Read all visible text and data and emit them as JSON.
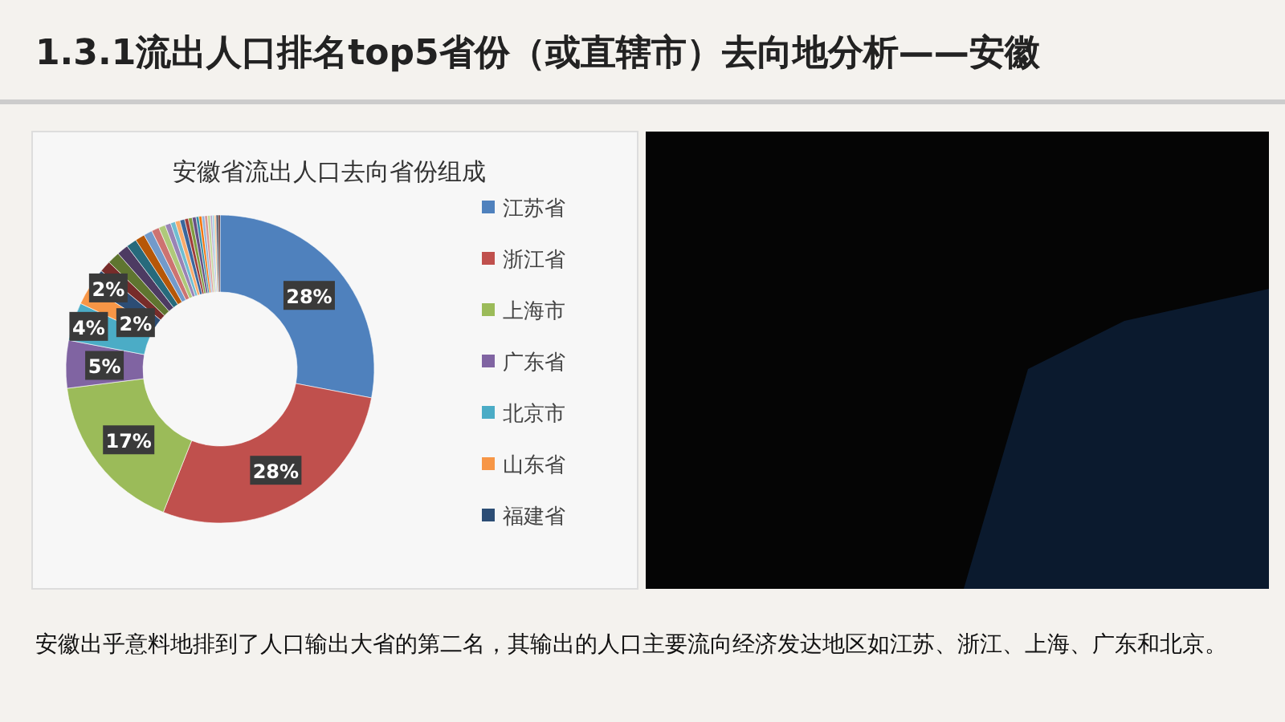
{
  "chart_data": {
    "type": "donut",
    "title": "1.3.1流出人口排名top5省份（或直辖市）去向地分析——安徽",
    "subtitle": "安徽省流出人口去向省份组成",
    "categories": [
      "江苏省",
      "浙江省",
      "上海市",
      "广东省",
      "北京市",
      "山东省",
      "福建省",
      null,
      null,
      null,
      null,
      null,
      null,
      null,
      null,
      null,
      null,
      null,
      null,
      null,
      null,
      null,
      null,
      null,
      null,
      null,
      null,
      null,
      null,
      null,
      null,
      null
    ],
    "values": [
      28,
      28,
      17,
      5,
      4,
      2,
      2,
      1.2,
      1.3,
      1.2,
      1.1,
      1.0,
      0.9,
      0.8,
      0.7,
      0.6,
      0.5,
      0.5,
      0.5,
      0.4,
      0.4,
      0.4,
      0.3,
      0.3,
      0.3,
      0.3,
      0.3,
      0.2,
      0.2,
      0.2,
      0.2,
      0.2
    ],
    "colors": [
      "#4f81bd",
      "#c0504d",
      "#9bbb59",
      "#8064a2",
      "#4bacc6",
      "#f79646",
      "#2c4d75",
      "#772c2a",
      "#5f7530",
      "#4d3b62",
      "#276a7c",
      "#b65708",
      "#729aca",
      "#cd7371",
      "#afc97a",
      "#9983b5",
      "#6fbdd1",
      "#f9ab6b",
      "#3a679c",
      "#9f3b38",
      "#7f9c40",
      "#664f83",
      "#358ea6",
      "#f3740b",
      "#95b3d7",
      "#d99694",
      "#c3d69b",
      "#b2a1c7",
      "#93cddd",
      "#fac090",
      "#1f3651",
      "#532020"
    ],
    "value_labels": [
      "28%",
      "28%",
      "17%",
      "5%",
      "4%",
      "2%",
      "2%",
      null,
      null,
      null,
      null,
      null,
      null,
      null,
      null,
      null,
      null,
      null,
      null,
      null,
      null,
      null,
      null,
      null,
      null,
      null,
      null,
      null,
      null,
      null,
      null,
      null
    ],
    "legend": "right",
    "annotations": [
      "安徽出乎意料地排到了人口输出大省的第二名，其输出的人口主要流向经济发达地区如江苏、浙江、上海、广东和北京。"
    ]
  }
}
